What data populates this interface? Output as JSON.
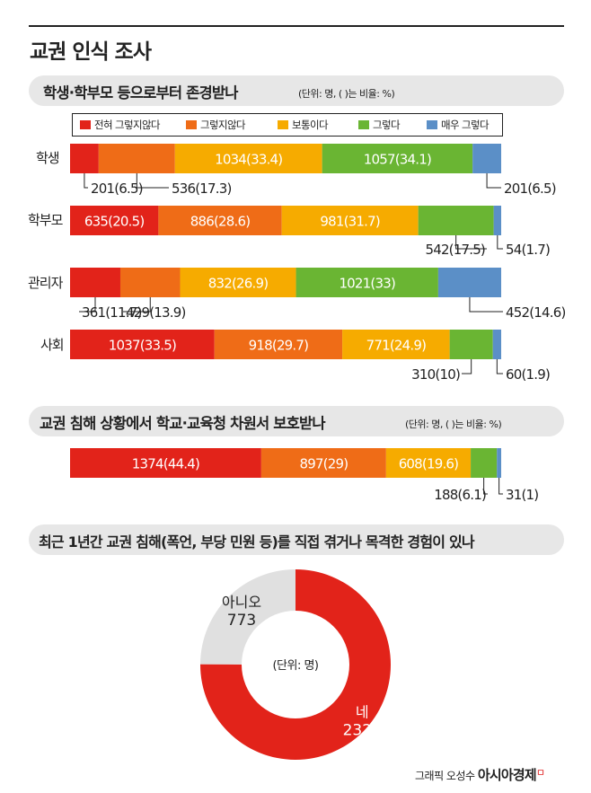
{
  "header": {
    "main_title": "교권 인식 조사",
    "credit_prefix": "그래픽 오성수",
    "brand": "아시아경제",
    "brand_mark": "ㅁ"
  },
  "colors": {
    "전혀 그렇지 않다": "#e2231a",
    "그렇지 않다": "#ef6c17",
    "보통이다": "#f6ab00",
    "그렇다": "#6ab533",
    "매우 그렇다": "#5b8fc7",
    "pie_yes": "#e2231a",
    "pie_no": "#e0e0e0"
  },
  "chart_data": [
    {
      "type": "bar",
      "stacked": true,
      "orientation": "horizontal",
      "title": "학생·학부모 등으로부터 존경받나",
      "unit_note": "(단위: 명, ( )는 비율: %)",
      "legend": [
        "전혀 그렇지 않다",
        "그렇지 않다",
        "보통이다",
        "그렇다",
        "매우 그렇다"
      ],
      "legend_labels": [
        "전혀 그렇지않다",
        "그렇지않다",
        "보통이다",
        "그렇다",
        "매우 그렇다"
      ],
      "categories": [
        "학생",
        "학부모",
        "관리자",
        "사회"
      ],
      "series": [
        {
          "name": "전혀 그렇지 않다",
          "values": [
            201,
            635,
            361,
            1037
          ],
          "percents": [
            6.5,
            20.5,
            11.7,
            33.5
          ],
          "labels": [
            "201(6.5)",
            "635(20.5)",
            "361(11.7)",
            "1037(33.5)"
          ]
        },
        {
          "name": "그렇지 않다",
          "values": [
            536,
            886,
            429,
            918
          ],
          "percents": [
            17.3,
            28.6,
            13.9,
            29.7
          ],
          "labels": [
            "536(17.3)",
            "886(28.6)",
            "429(13.9)",
            "918(29.7)"
          ]
        },
        {
          "name": "보통이다",
          "values": [
            1034,
            981,
            832,
            771
          ],
          "percents": [
            33.4,
            31.7,
            26.9,
            24.9
          ],
          "labels": [
            "1034(33.4)",
            "981(31.7)",
            "832(26.9)",
            "771(24.9)"
          ]
        },
        {
          "name": "그렇다",
          "values": [
            1057,
            542,
            1021,
            310
          ],
          "percents": [
            34.1,
            17.5,
            33,
            10
          ],
          "labels": [
            "1057(34.1)",
            "542(17.5)",
            "1021(33)",
            "310(10)"
          ]
        },
        {
          "name": "매우 그렇다",
          "values": [
            201,
            54,
            452,
            60
          ],
          "percents": [
            6.5,
            1.7,
            14.6,
            1.9
          ],
          "labels": [
            "201(6.5)",
            "54(1.7)",
            "452(14.6)",
            "60(1.9)"
          ]
        }
      ],
      "label_inside": [
        [
          false,
          false,
          true,
          true,
          false
        ],
        [
          true,
          true,
          true,
          false,
          false
        ],
        [
          false,
          false,
          true,
          true,
          false
        ],
        [
          true,
          true,
          true,
          false,
          false
        ]
      ]
    },
    {
      "type": "bar",
      "stacked": true,
      "orientation": "horizontal",
      "title": "교권 침해 상황에서 학교·교육청 차원서 보호받나",
      "unit_note": "(단위: 명, ( )는 비율: %)",
      "categories": [
        ""
      ],
      "series": [
        {
          "name": "전혀 그렇지 않다",
          "values": [
            1374
          ],
          "percents": [
            44.4
          ],
          "labels": [
            "1374(44.4)"
          ]
        },
        {
          "name": "그렇지 않다",
          "values": [
            897
          ],
          "percents": [
            29
          ],
          "labels": [
            "897(29)"
          ]
        },
        {
          "name": "보통이다",
          "values": [
            608
          ],
          "percents": [
            19.6
          ],
          "labels": [
            "608(19.6)"
          ]
        },
        {
          "name": "그렇다",
          "values": [
            188
          ],
          "percents": [
            6.1
          ],
          "labels": [
            "188(6.1)"
          ]
        },
        {
          "name": "매우 그렇다",
          "values": [
            31
          ],
          "percents": [
            1
          ],
          "labels": [
            "31(1)"
          ]
        }
      ],
      "label_inside": [
        [
          true,
          true,
          true,
          false,
          false
        ]
      ]
    },
    {
      "type": "pie",
      "donut": true,
      "title": "최근 1년간 교권 침해(폭언, 부당 민원 등)를 직접 겪거나 목격한 경험이 있나",
      "center_label": "(단위: 명)",
      "slices": [
        {
          "label": "네",
          "value": 2325
        },
        {
          "label": "아니오",
          "value": 773
        }
      ]
    }
  ]
}
